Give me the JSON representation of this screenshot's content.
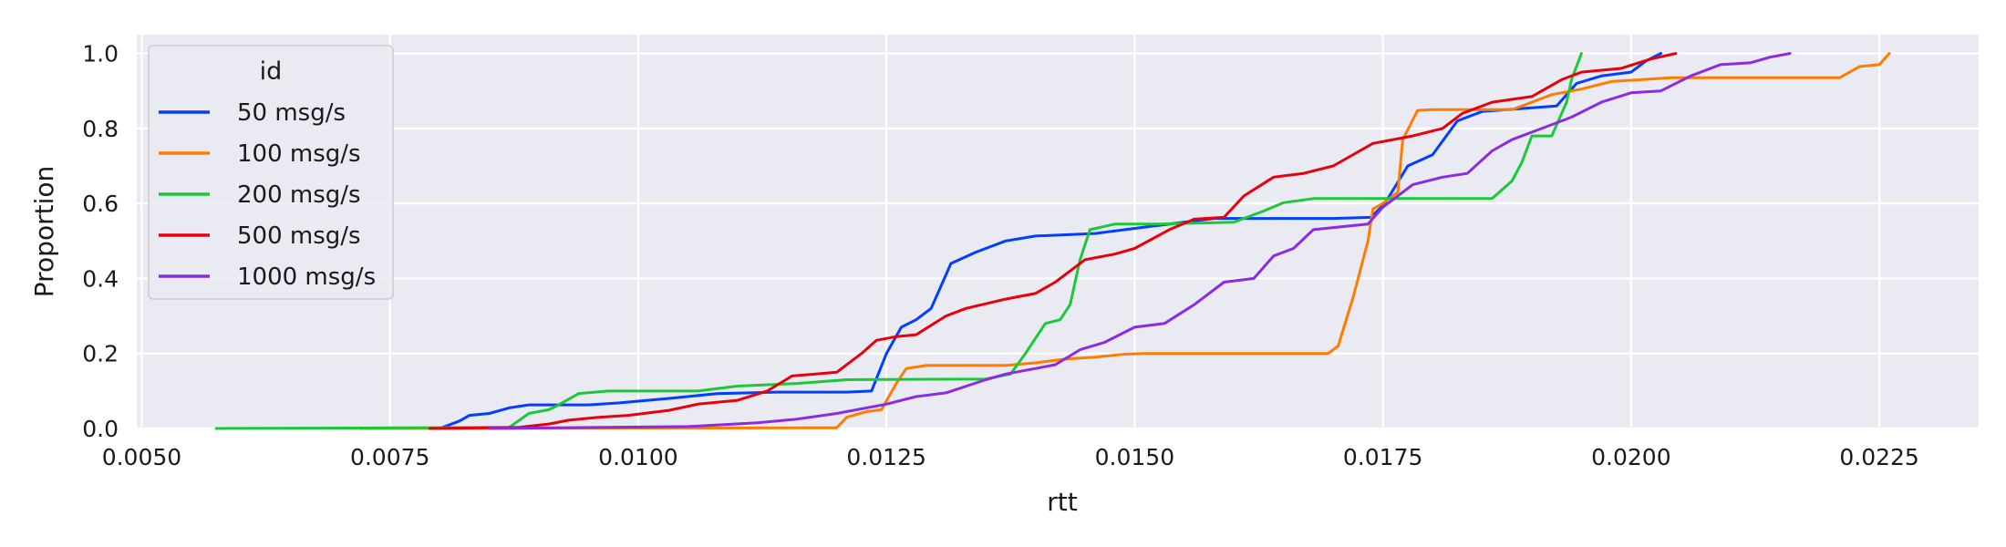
{
  "chart_data": {
    "type": "line",
    "xlabel": "rtt",
    "ylabel": "Proportion",
    "xlim": [
      0.00495,
      0.0235
    ],
    "ylim": [
      0.0,
      1.05
    ],
    "xticks": [
      "0.0050",
      "0.0075",
      "0.0100",
      "0.0125",
      "0.0150",
      "0.0175",
      "0.0200",
      "0.0225"
    ],
    "yticks": [
      "0.0",
      "0.2",
      "0.4",
      "0.6",
      "0.8",
      "1.0"
    ],
    "grid": true,
    "background": "#eaeaf2",
    "legend": {
      "title": "id",
      "placement": "top-left"
    },
    "series": [
      {
        "name": "50 msg/s",
        "color": "#023eff",
        "points": [
          [
            0.008,
            0
          ],
          [
            0.0082,
            0.02
          ],
          [
            0.0083,
            0.035
          ],
          [
            0.0085,
            0.04
          ],
          [
            0.0087,
            0.055
          ],
          [
            0.0089,
            0.063
          ],
          [
            0.0095,
            0.063
          ],
          [
            0.0098,
            0.068
          ],
          [
            0.0103,
            0.08
          ],
          [
            0.0108,
            0.093
          ],
          [
            0.0114,
            0.097
          ],
          [
            0.0121,
            0.097
          ],
          [
            0.01235,
            0.1
          ],
          [
            0.0125,
            0.2
          ],
          [
            0.01265,
            0.27
          ],
          [
            0.0128,
            0.29
          ],
          [
            0.01295,
            0.32
          ],
          [
            0.01315,
            0.44
          ],
          [
            0.0134,
            0.47
          ],
          [
            0.0137,
            0.5
          ],
          [
            0.014,
            0.513
          ],
          [
            0.0146,
            0.52
          ],
          [
            0.0152,
            0.54
          ],
          [
            0.0158,
            0.56
          ],
          [
            0.017,
            0.56
          ],
          [
            0.01738,
            0.563
          ],
          [
            0.01752,
            0.6
          ],
          [
            0.01775,
            0.7
          ],
          [
            0.018,
            0.73
          ],
          [
            0.01825,
            0.82
          ],
          [
            0.0185,
            0.845
          ],
          [
            0.019,
            0.855
          ],
          [
            0.01925,
            0.86
          ],
          [
            0.01945,
            0.92
          ],
          [
            0.0197,
            0.94
          ],
          [
            0.02,
            0.95
          ],
          [
            0.02015,
            0.98
          ],
          [
            0.0203,
            1.0
          ]
        ]
      },
      {
        "name": "100 msg/s",
        "color": "#ff7c00",
        "points": [
          [
            0.0072,
            0
          ],
          [
            0.012,
            0.002
          ],
          [
            0.0121,
            0.03
          ],
          [
            0.0123,
            0.045
          ],
          [
            0.01245,
            0.05
          ],
          [
            0.0126,
            0.12
          ],
          [
            0.0127,
            0.16
          ],
          [
            0.0129,
            0.168
          ],
          [
            0.0137,
            0.168
          ],
          [
            0.014,
            0.175
          ],
          [
            0.0143,
            0.185
          ],
          [
            0.0146,
            0.19
          ],
          [
            0.0149,
            0.198
          ],
          [
            0.0151,
            0.2
          ],
          [
            0.01695,
            0.2
          ],
          [
            0.01705,
            0.22
          ],
          [
            0.0172,
            0.35
          ],
          [
            0.01735,
            0.5
          ],
          [
            0.0174,
            0.585
          ],
          [
            0.0175,
            0.6
          ],
          [
            0.01765,
            0.63
          ],
          [
            0.0177,
            0.77
          ],
          [
            0.01785,
            0.848
          ],
          [
            0.018,
            0.85
          ],
          [
            0.0188,
            0.85
          ],
          [
            0.019,
            0.87
          ],
          [
            0.0192,
            0.89
          ],
          [
            0.0195,
            0.905
          ],
          [
            0.0198,
            0.925
          ],
          [
            0.0204,
            0.935
          ],
          [
            0.0221,
            0.935
          ],
          [
            0.0223,
            0.965
          ],
          [
            0.0225,
            0.97
          ],
          [
            0.0226,
            1.0
          ]
        ]
      },
      {
        "name": "200 msg/s",
        "color": "#1ac938",
        "points": [
          [
            0.00575,
            0
          ],
          [
            0.0087,
            0.003
          ],
          [
            0.0089,
            0.04
          ],
          [
            0.0091,
            0.05
          ],
          [
            0.0092,
            0.063
          ],
          [
            0.0094,
            0.093
          ],
          [
            0.0097,
            0.1
          ],
          [
            0.0106,
            0.1
          ],
          [
            0.011,
            0.113
          ],
          [
            0.0116,
            0.12
          ],
          [
            0.0121,
            0.13
          ],
          [
            0.0135,
            0.132
          ],
          [
            0.01375,
            0.145
          ],
          [
            0.0139,
            0.2
          ],
          [
            0.0141,
            0.28
          ],
          [
            0.01425,
            0.29
          ],
          [
            0.01435,
            0.33
          ],
          [
            0.01445,
            0.45
          ],
          [
            0.01455,
            0.53
          ],
          [
            0.0148,
            0.545
          ],
          [
            0.0152,
            0.545
          ],
          [
            0.016,
            0.55
          ],
          [
            0.0163,
            0.58
          ],
          [
            0.0165,
            0.602
          ],
          [
            0.0168,
            0.613
          ],
          [
            0.0186,
            0.613
          ],
          [
            0.0188,
            0.66
          ],
          [
            0.0189,
            0.71
          ],
          [
            0.019,
            0.78
          ],
          [
            0.0192,
            0.78
          ],
          [
            0.01935,
            0.87
          ],
          [
            0.0194,
            0.93
          ],
          [
            0.0195,
            1.0
          ]
        ]
      },
      {
        "name": "500 msg/s",
        "color": "#e8000b",
        "points": [
          [
            0.0079,
            0
          ],
          [
            0.0088,
            0.003
          ],
          [
            0.0091,
            0.012
          ],
          [
            0.0093,
            0.022
          ],
          [
            0.0096,
            0.03
          ],
          [
            0.0099,
            0.035
          ],
          [
            0.0103,
            0.048
          ],
          [
            0.0106,
            0.065
          ],
          [
            0.011,
            0.075
          ],
          [
            0.0113,
            0.1
          ],
          [
            0.01155,
            0.14
          ],
          [
            0.012,
            0.15
          ],
          [
            0.01225,
            0.2
          ],
          [
            0.0124,
            0.235
          ],
          [
            0.0126,
            0.245
          ],
          [
            0.0128,
            0.25
          ],
          [
            0.0131,
            0.3
          ],
          [
            0.0133,
            0.32
          ],
          [
            0.0137,
            0.345
          ],
          [
            0.014,
            0.36
          ],
          [
            0.0142,
            0.39
          ],
          [
            0.0145,
            0.45
          ],
          [
            0.0148,
            0.465
          ],
          [
            0.015,
            0.48
          ],
          [
            0.01535,
            0.53
          ],
          [
            0.0156,
            0.558
          ],
          [
            0.0159,
            0.563
          ],
          [
            0.0161,
            0.62
          ],
          [
            0.0164,
            0.67
          ],
          [
            0.0167,
            0.68
          ],
          [
            0.017,
            0.7
          ],
          [
            0.0174,
            0.76
          ],
          [
            0.0178,
            0.78
          ],
          [
            0.0181,
            0.8
          ],
          [
            0.0183,
            0.84
          ],
          [
            0.0186,
            0.87
          ],
          [
            0.019,
            0.885
          ],
          [
            0.0193,
            0.93
          ],
          [
            0.0195,
            0.95
          ],
          [
            0.0199,
            0.96
          ],
          [
            0.0202,
            0.985
          ],
          [
            0.02045,
            1.0
          ]
        ]
      },
      {
        "name": "1000 msg/s",
        "color": "#8b2be2",
        "points": [
          [
            0.0085,
            0
          ],
          [
            0.0105,
            0.005
          ],
          [
            0.0112,
            0.015
          ],
          [
            0.0116,
            0.025
          ],
          [
            0.012,
            0.04
          ],
          [
            0.0125,
            0.065
          ],
          [
            0.0128,
            0.085
          ],
          [
            0.0131,
            0.095
          ],
          [
            0.0135,
            0.13
          ],
          [
            0.0137,
            0.145
          ],
          [
            0.0142,
            0.17
          ],
          [
            0.01445,
            0.21
          ],
          [
            0.0147,
            0.23
          ],
          [
            0.015,
            0.27
          ],
          [
            0.0153,
            0.28
          ],
          [
            0.0156,
            0.33
          ],
          [
            0.0159,
            0.39
          ],
          [
            0.0162,
            0.4
          ],
          [
            0.0164,
            0.46
          ],
          [
            0.0166,
            0.48
          ],
          [
            0.0168,
            0.53
          ],
          [
            0.01735,
            0.545
          ],
          [
            0.0175,
            0.59
          ],
          [
            0.0178,
            0.65
          ],
          [
            0.0181,
            0.67
          ],
          [
            0.01835,
            0.68
          ],
          [
            0.0186,
            0.74
          ],
          [
            0.0188,
            0.77
          ],
          [
            0.0191,
            0.8
          ],
          [
            0.0194,
            0.83
          ],
          [
            0.0197,
            0.87
          ],
          [
            0.02,
            0.895
          ],
          [
            0.0203,
            0.9
          ],
          [
            0.0206,
            0.94
          ],
          [
            0.0209,
            0.97
          ],
          [
            0.0212,
            0.975
          ],
          [
            0.0214,
            0.99
          ],
          [
            0.0216,
            1.0
          ]
        ]
      }
    ]
  }
}
